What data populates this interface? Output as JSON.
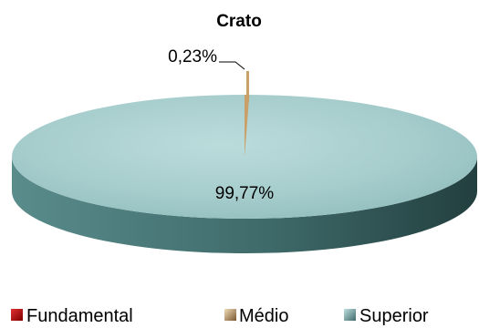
{
  "chart_data": {
    "type": "pie",
    "style": "3d",
    "title_lines": [
      "",
      "Crato"
    ],
    "categories": [
      "Fundamental",
      "Médio",
      "Superior"
    ],
    "values": [
      0,
      0.23,
      99.77
    ],
    "value_labels": [
      "",
      "0,23%",
      "99,77%"
    ],
    "colors": [
      "#c00000",
      "#c8a068",
      "#6fa8a8"
    ],
    "legend_position": "bottom"
  }
}
